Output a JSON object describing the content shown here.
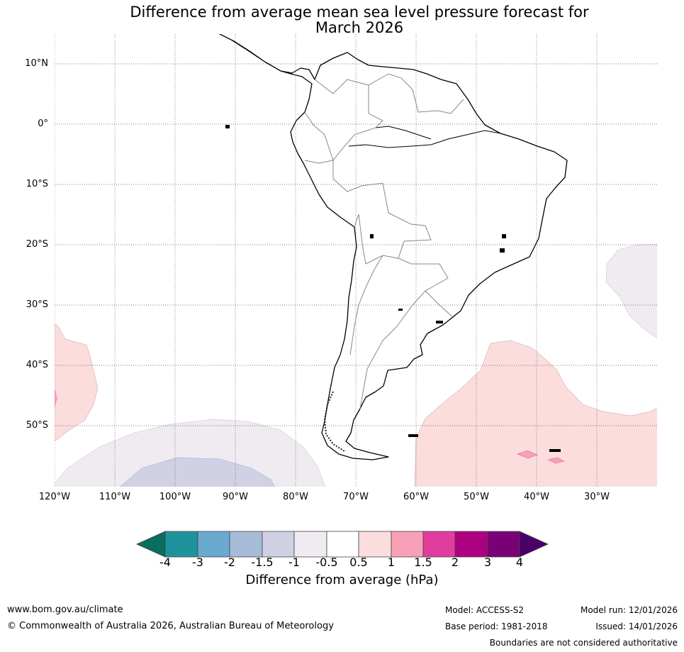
{
  "title": {
    "line1": "Difference from average mean sea level pressure forecast for",
    "line2": "March 2026"
  },
  "map": {
    "region": "South America",
    "lat_labels": [
      "10°N",
      "0°",
      "10°S",
      "20°S",
      "30°S",
      "40°S",
      "50°S"
    ],
    "lon_labels": [
      "120°W",
      "110°W",
      "100°W",
      "90°W",
      "80°W",
      "70°W",
      "60°W",
      "50°W",
      "40°W",
      "30°W"
    ],
    "anomaly_areas": [
      {
        "name": "eastern-pacific",
        "range_hPa": "0.5 to 1",
        "peak_range_hPa": "1 to 1.5"
      },
      {
        "name": "south-pacific",
        "range_hPa": "-0.5 to -1",
        "inner_range_hPa": "-1 to -1.5"
      },
      {
        "name": "south-atlantic",
        "range_hPa": "0.5 to 1",
        "peak_range_hPa": "1 to 1.5"
      },
      {
        "name": "subtropical-atlantic",
        "range_hPa": "-0.5 to -1"
      }
    ]
  },
  "colorbar": {
    "ticks": [
      "-4",
      "-3",
      "-2",
      "-1.5",
      "-1",
      "-0.5",
      "0.5",
      "1",
      "1.5",
      "2",
      "3",
      "4"
    ],
    "colors": [
      "#086e5e",
      "#1f939c",
      "#6aa9d0",
      "#a6bbd8",
      "#d1d1e6",
      "#efebf0",
      "#ffffff",
      "#fbdddd",
      "#f7a0b8",
      "#e03d9e",
      "#ad0081",
      "#7a0077",
      "#4b0068"
    ],
    "label": "Difference from average (hPa)"
  },
  "footer": {
    "website": "www.bom.gov.au/climate",
    "copyright": "© Commonwealth of Australia 2026, Australian Bureau of Meteorology",
    "model": "Model: ACCESS-S2",
    "base_period": "Base period: 1981-2018",
    "model_run": "Model run: 12/01/2026",
    "issued": "Issued: 14/01/2026",
    "disclaimer": "Boundaries are not considered authoritative"
  }
}
